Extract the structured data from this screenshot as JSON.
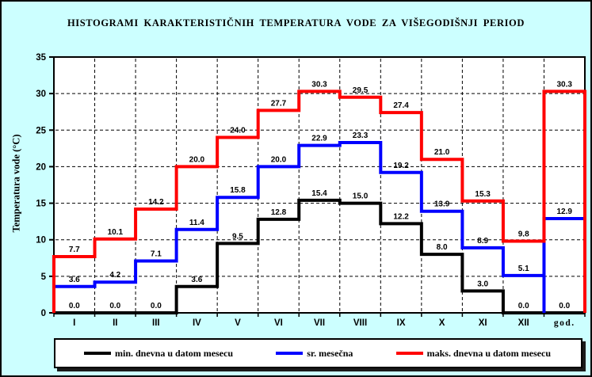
{
  "title": "HISTOGRAMI KARAKTERISTIČNIH TEMPERATURA VODE ZA VIŠEGODIŠNJI PERIOD",
  "y_axis_title": "Temperatura vode (°C)",
  "window": {
    "background": "#ccffff",
    "plot_background": "#ffffff",
    "border_color": "#000000"
  },
  "chart_data": {
    "type": "line",
    "subtype": "step-histogram",
    "title": "HISTOGRAMI KARAKTERISTIČNIH TEMPERATURA VODE ZA VIŠEGODIŠNJI PERIOD",
    "xlabel": "",
    "ylabel": "Temperatura vode (°C)",
    "categories": [
      "I",
      "II",
      "III",
      "IV",
      "V",
      "VI",
      "VII",
      "VIII",
      "IX",
      "X",
      "XI",
      "XII",
      "god."
    ],
    "ylim": [
      0,
      35
    ],
    "yticks": [
      0,
      5,
      10,
      15,
      20,
      25,
      30,
      35
    ],
    "grid": true,
    "legend_position": "bottom",
    "series": [
      {
        "name": "min. dnevna u datom mesecu",
        "color": "#000000",
        "values": [
          0.0,
          0.0,
          0.0,
          3.6,
          9.5,
          12.8,
          15.4,
          15.0,
          12.2,
          8.0,
          3.0,
          0.0,
          0.0
        ]
      },
      {
        "name": "sr. mesečna",
        "color": "#0000ff",
        "god_vertical_from_zero": true,
        "values": [
          3.6,
          4.2,
          7.1,
          11.4,
          15.8,
          20.0,
          22.9,
          23.3,
          19.2,
          13.9,
          8.9,
          5.1,
          12.9
        ]
      },
      {
        "name": "maks. dnevna u datom mesecu",
        "color": "#ff0000",
        "values": [
          7.7,
          10.1,
          14.2,
          20.0,
          24.0,
          27.7,
          30.3,
          29.5,
          27.4,
          21.0,
          15.3,
          9.8,
          30.3
        ]
      }
    ]
  }
}
